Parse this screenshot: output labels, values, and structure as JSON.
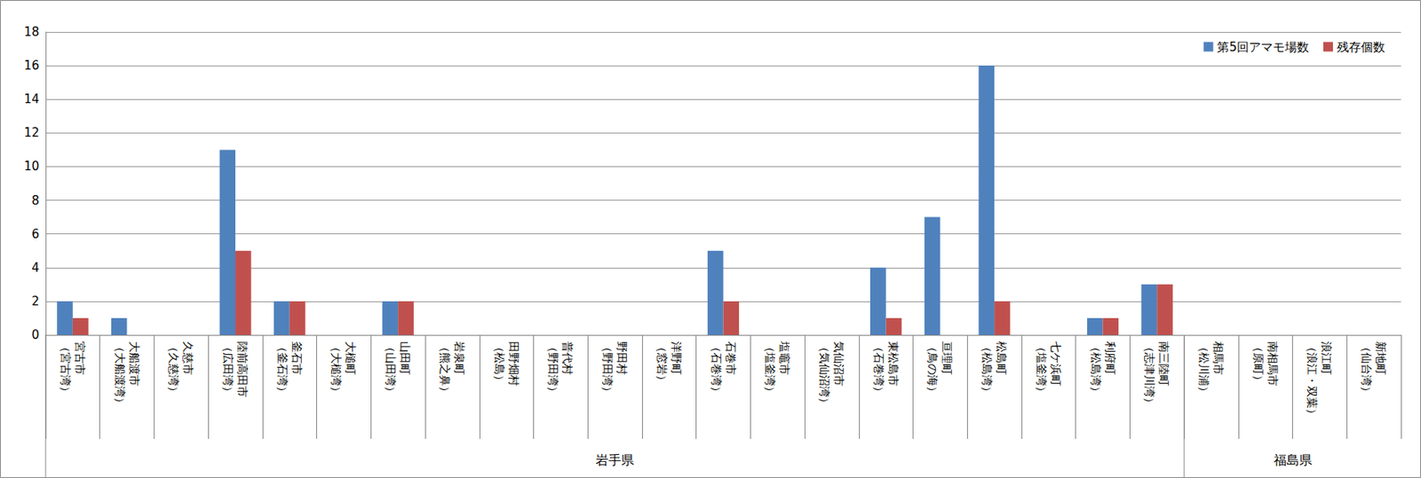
{
  "chart_data": {
    "type": "bar",
    "categories": [
      "宮古市\n（宮古湾）",
      "大船渡市\n（大船渡湾）",
      "久慈市\n（久慈湾）",
      "陸前高田市\n（広田湾）",
      "釜石市\n（釜石湾）",
      "大槌町\n（大槌湾）",
      "山田町\n（山田湾）",
      "岩泉町\n（熊之鼻）",
      "田野畑村\n（松島）",
      "普代村\n（野田湾）",
      "野田村\n（野田湾）",
      "洋野町\n（窓岩）",
      "石巻市\n（石巻湾）",
      "塩竈市\n（塩釜湾）",
      "気仙沼市\n（気仙沼湾）",
      "東松島市\n（石巻湾）",
      "亘理町\n（鳥の海）",
      "松島町\n（松島湾）",
      "七ケ浜町\n（塩釜湾）",
      "利府町\n（松島湾）",
      "南三陸町\n（志津川湾）",
      "相馬市\n（松川浦）",
      "南相馬市\n（原町）",
      "浪江町\n（浪江・双葉）",
      "新地町\n（仙台湾）"
    ],
    "series": [
      {
        "name": "第5回アマモ場数",
        "color": "#4f81bd",
        "values": [
          2,
          1,
          0,
          11,
          2,
          0,
          2,
          0,
          0,
          0,
          0,
          0,
          5,
          0,
          0,
          4,
          7,
          16,
          0,
          1,
          3,
          0,
          0,
          0,
          0
        ]
      },
      {
        "name": "残存個数",
        "color": "#c0504d",
        "values": [
          1,
          0,
          0,
          5,
          2,
          0,
          2,
          0,
          0,
          0,
          0,
          0,
          2,
          0,
          0,
          1,
          0,
          2,
          0,
          1,
          3,
          0,
          0,
          0,
          0
        ]
      }
    ],
    "groups": [
      {
        "label": "岩手県",
        "count": 21
      },
      {
        "label": "福島県",
        "count": 4
      }
    ],
    "ylim": [
      0,
      18
    ],
    "yticks": [
      0,
      2,
      4,
      6,
      8,
      10,
      12,
      14,
      16,
      18
    ],
    "grid": true,
    "legend": "top-right"
  }
}
